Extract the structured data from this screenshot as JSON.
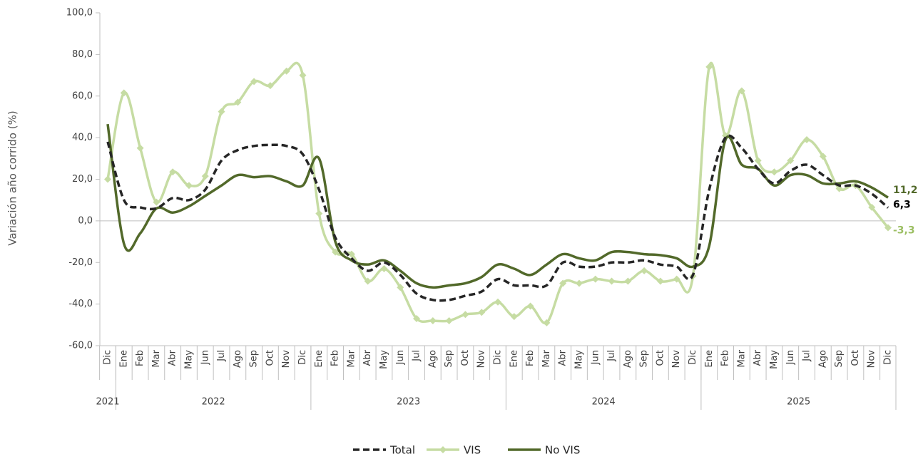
{
  "chart_data": {
    "type": "line",
    "y_label": "Variación año corrido (%)",
    "categories": [
      "Dic",
      "Ene",
      "Feb",
      "Mar",
      "Abr",
      "May",
      "Jun",
      "Jul",
      "Ago",
      "Sep",
      "Oct",
      "Nov",
      "Dic",
      "Ene",
      "Feb",
      "Mar",
      "Abr",
      "May",
      "Jun",
      "Jul",
      "Ago",
      "Sep",
      "Oct",
      "Nov",
      "Dic",
      "Ene",
      "Feb",
      "Mar",
      "Abr",
      "May",
      "Jun",
      "Jul",
      "Ago",
      "Sep",
      "Oct",
      "Nov",
      "Dic",
      "Ene",
      "Feb",
      "Mar",
      "Abr",
      "May",
      "Jun",
      "Jul",
      "Ago",
      "Sep",
      "Oct",
      "Nov",
      "Dic"
    ],
    "groups": [
      "2021",
      "2022",
      "2023",
      "2024",
      "2025"
    ],
    "ylim": [
      -60,
      100
    ],
    "yticks": [
      {
        "value": -60,
        "label": "-60,0"
      },
      {
        "value": -40,
        "label": "-40,0"
      },
      {
        "value": -20,
        "label": "-20,0"
      },
      {
        "value": 0,
        "label": "0,0"
      },
      {
        "value": 20,
        "label": "20,0"
      },
      {
        "value": 40,
        "label": "40,0"
      },
      {
        "value": 60,
        "label": "60,0"
      },
      {
        "value": 80,
        "label": "80,0"
      },
      {
        "value": 100,
        "label": "100,0"
      }
    ],
    "series": [
      {
        "name": "Total",
        "color": "#262626",
        "dash": true,
        "marker": false,
        "values": [
          38,
          10,
          6.5,
          6,
          11,
          10,
          15,
          29,
          34,
          36,
          36.5,
          36,
          32,
          15,
          -8,
          -18,
          -24,
          -20,
          -26,
          -35,
          -38,
          -38,
          -36,
          -34,
          -28,
          -31,
          -31,
          -31,
          -20,
          -22,
          -22,
          -20,
          -20,
          -19,
          -21,
          -22,
          -26,
          15,
          40,
          35,
          25,
          18,
          24,
          27,
          22,
          17,
          17,
          13,
          6.3
        ],
        "value_labels": [
          null,
          null,
          null,
          null,
          null,
          null,
          null,
          null,
          null,
          null,
          null,
          null,
          null,
          null,
          null,
          null,
          null,
          null,
          null,
          null,
          null,
          null,
          null,
          null,
          null,
          null,
          null,
          null,
          null,
          null,
          null,
          null,
          null,
          null,
          null,
          null,
          null,
          null,
          null,
          null,
          null,
          null,
          null,
          null,
          null,
          null,
          null,
          null,
          "6,3"
        ]
      },
      {
        "name": "VIS",
        "color": "#c6dca3",
        "dash": false,
        "marker": true,
        "values": [
          20,
          61.5,
          35,
          9,
          23.5,
          17,
          21.5,
          52.5,
          57,
          67,
          65,
          72,
          70,
          3.5,
          -15,
          -16,
          -29,
          -23,
          -32,
          -47,
          -48,
          -48,
          -45,
          -44,
          -39,
          -46,
          -41,
          -49,
          -30,
          -30,
          -28,
          -29,
          -29,
          -24,
          -29,
          -28,
          -26.5,
          74,
          41,
          62.5,
          29,
          23.5,
          29,
          39,
          31,
          15.5,
          17,
          6.5,
          -3.3
        ],
        "value_labels": [
          null,
          null,
          null,
          null,
          null,
          null,
          null,
          null,
          null,
          null,
          null,
          null,
          null,
          null,
          null,
          null,
          null,
          null,
          null,
          null,
          null,
          null,
          null,
          null,
          null,
          null,
          null,
          null,
          null,
          null,
          null,
          null,
          null,
          null,
          null,
          null,
          null,
          null,
          null,
          null,
          null,
          null,
          null,
          null,
          null,
          null,
          null,
          null,
          "-3,3"
        ]
      },
      {
        "name": "No VIS",
        "color": "#52692a",
        "dash": false,
        "marker": false,
        "values": [
          46.5,
          -11,
          -6,
          6,
          4,
          7,
          12,
          17,
          22,
          21,
          21.5,
          19,
          17,
          30,
          -10,
          -19,
          -21,
          -19,
          -24,
          -30,
          -32,
          -31,
          -30,
          -27,
          -21,
          -23,
          -26,
          -21,
          -16,
          -18,
          -19,
          -15,
          -15,
          -16,
          -16.5,
          -18,
          -22,
          -12,
          39,
          27,
          25,
          17,
          22,
          22,
          18,
          18,
          19,
          16,
          11.2
        ],
        "value_labels": [
          null,
          null,
          null,
          null,
          null,
          null,
          null,
          null,
          null,
          null,
          null,
          null,
          null,
          null,
          null,
          null,
          null,
          null,
          null,
          null,
          null,
          null,
          null,
          null,
          null,
          null,
          null,
          null,
          null,
          null,
          null,
          null,
          null,
          null,
          null,
          null,
          null,
          null,
          null,
          null,
          null,
          null,
          null,
          null,
          null,
          null,
          null,
          null,
          "11,2"
        ]
      }
    ]
  }
}
